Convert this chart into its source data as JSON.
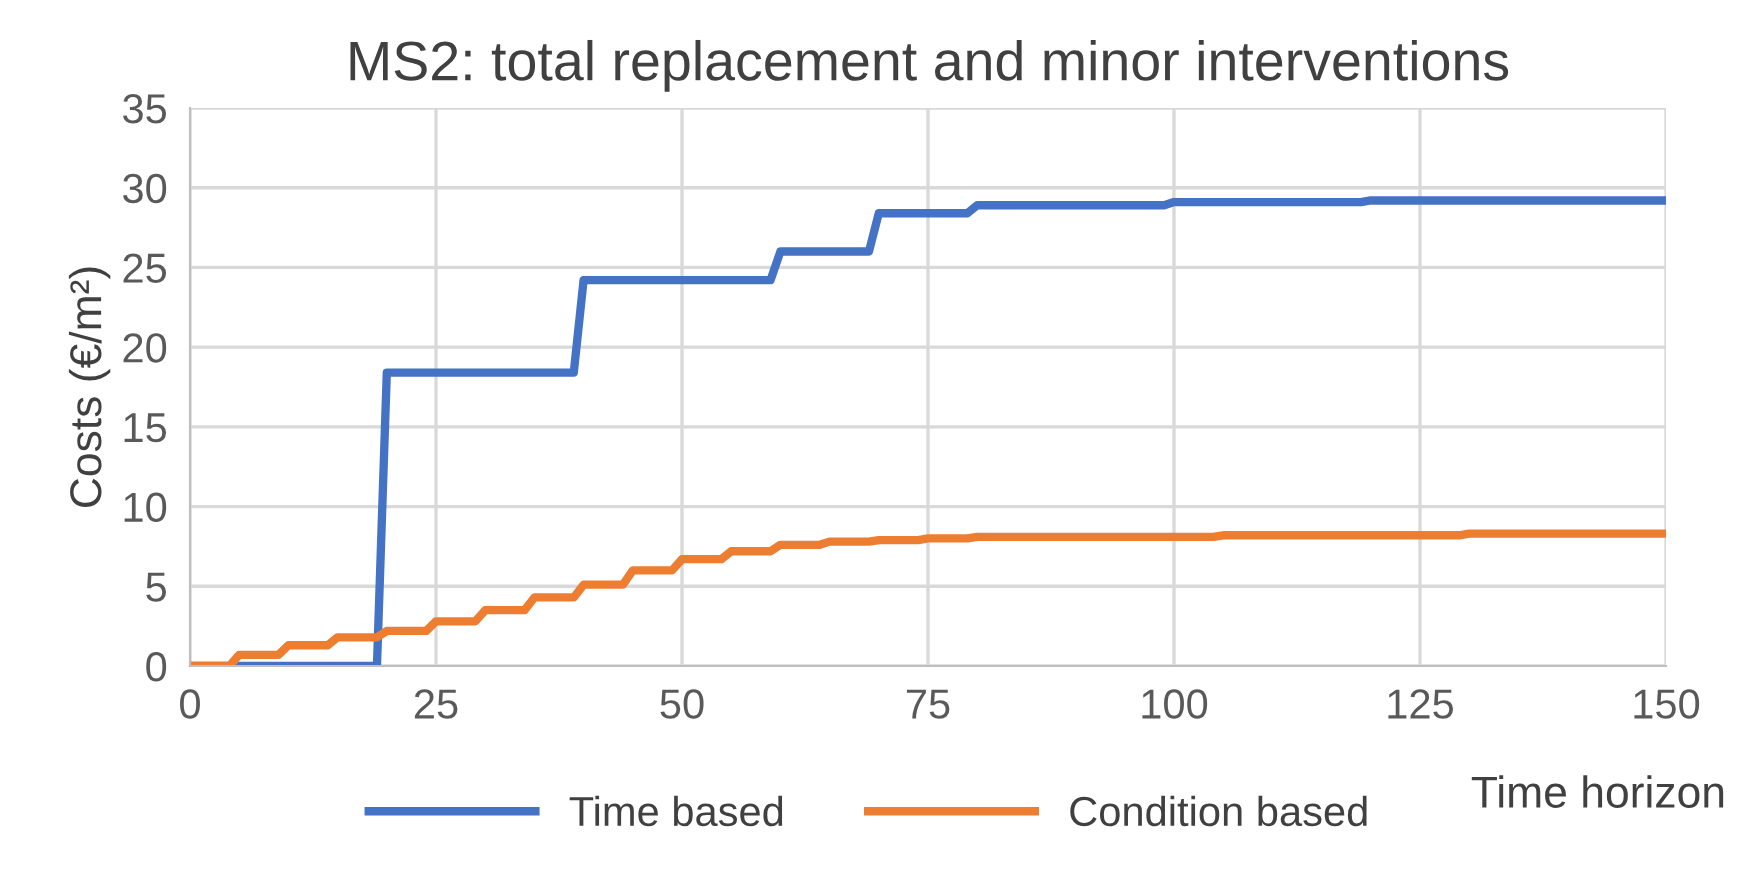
{
  "chart_data": {
    "type": "line",
    "title": "MS2: total replacement and minor interventions",
    "xlabel": "Time horizon",
    "ylabel": "Costs (€/m²)",
    "xlim": [
      0,
      150
    ],
    "xticks": [
      0,
      25,
      50,
      75,
      100,
      125,
      150
    ],
    "ylim": [
      0,
      35
    ],
    "yticks": [
      0,
      5,
      10,
      15,
      20,
      25,
      30,
      35
    ],
    "grid": true,
    "legend": "bottom",
    "line_style": "solid",
    "series": [
      {
        "name": "Time based",
        "color": "#4472c4",
        "x": [
          0,
          19,
          20,
          39,
          40,
          59,
          60,
          69,
          70,
          79,
          80,
          99,
          100,
          119,
          120,
          150
        ],
        "values": [
          0,
          0,
          18.4,
          18.4,
          24.2,
          24.2,
          26,
          26,
          28.4,
          28.4,
          28.9,
          28.9,
          29.1,
          29.1,
          29.2,
          29.2
        ]
      },
      {
        "name": "Condition based",
        "color": "#ed7d31",
        "x": [
          0,
          4,
          5,
          9,
          10,
          14,
          15,
          19,
          20,
          24,
          25,
          29,
          30,
          34,
          35,
          39,
          40,
          44,
          45,
          49,
          50,
          54,
          55,
          59,
          60,
          64,
          65,
          69,
          70,
          74,
          75,
          79,
          80,
          104,
          105,
          129,
          130,
          150
        ],
        "values": [
          0,
          0,
          0.7,
          0.7,
          1.3,
          1.3,
          1.8,
          1.8,
          2.2,
          2.2,
          2.8,
          2.8,
          3.5,
          3.5,
          4.3,
          4.3,
          5.1,
          5.1,
          6.0,
          6.0,
          6.7,
          6.7,
          7.2,
          7.2,
          7.6,
          7.6,
          7.8,
          7.8,
          7.9,
          7.9,
          8.0,
          8.0,
          8.1,
          8.1,
          8.2,
          8.2,
          8.3,
          8.3
        ]
      }
    ]
  }
}
